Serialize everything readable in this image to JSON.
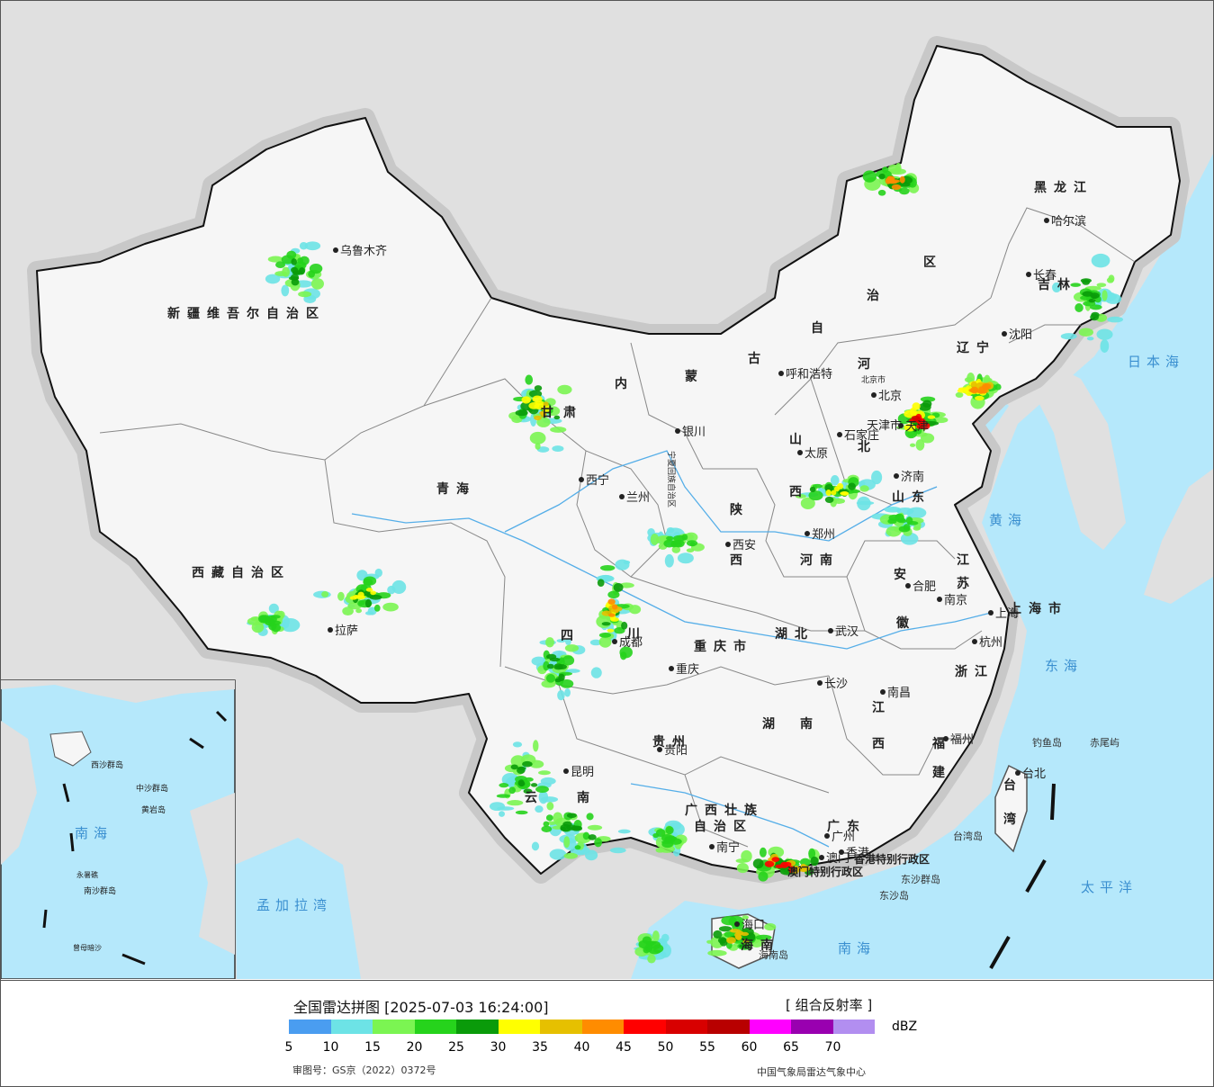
{
  "legend": {
    "title": "全国雷达拼图 [2025-07-03 16:24:00]",
    "product": "[ 组合反射率 ]",
    "unit": "dBZ",
    "colors": [
      "#4a9df0",
      "#6de3e6",
      "#7bf552",
      "#26d31c",
      "#0a9b0a",
      "#ffff00",
      "#e6c000",
      "#ff8c00",
      "#ff0000",
      "#d80000",
      "#b80000",
      "#ff00ff",
      "#9900b0",
      "#b28ef0"
    ],
    "ticks": [
      "5",
      "10",
      "15",
      "20",
      "25",
      "30",
      "35",
      "40",
      "45",
      "50",
      "55",
      "60",
      "65",
      "70"
    ]
  },
  "credits": {
    "left": "审图号：GS京（2022）0372号",
    "right": "中国气象局雷达气象中心"
  },
  "colors": {
    "land": "#f6f6f6",
    "sea": "#b5e8fb",
    "foreign": "#e0e0e0",
    "border": "#111111",
    "province": "#888888",
    "river": "#55aee8"
  },
  "labels": {
    "regions": {
      "xinjiang": "新疆维吾尔自治区",
      "xizang": "西藏自治区",
      "qinghai": "青海",
      "gansu_1": "甘",
      "gansu_2": "肃",
      "neimenggu_1": "内",
      "neimenggu_2": "蒙",
      "neimenggu_3": "古",
      "neimenggu_4": "自",
      "neimenggu_5": "治",
      "neimenggu_6": "区",
      "heilongjiang": "黑龙江",
      "jilin": "吉林",
      "liaoning": "辽宁",
      "hebei_1": "河",
      "hebei_2": "北",
      "shanxi_1": "山",
      "shanxi_2": "西",
      "shandong": "山东",
      "shaanxi_1": "陕",
      "shaanxi_2": "西",
      "henan": "河南",
      "jiangsu_1": "江",
      "jiangsu_2": "苏",
      "anhui_1": "安",
      "anhui_2": "徽",
      "shanghai": "上海市",
      "zhejiang": "浙江",
      "hubei": "湖北",
      "hunan_1": "湖",
      "hunan_2": "南",
      "jiangxi_1": "江",
      "jiangxi_2": "西",
      "fujian_1": "福",
      "fujian_2": "建",
      "sichuan_1": "四",
      "sichuan_2": "川",
      "chongqing": "重庆市",
      "guizhou": "贵州",
      "yunnan_1": "云",
      "yunnan_2": "南",
      "guangxi_1": "广西壮族",
      "guangxi_2": "自治区",
      "guangdong": "广东",
      "hainan": "海南",
      "taiwan_1": "台",
      "taiwan_2": "湾",
      "ningxia": "宁夏回族自治区",
      "tianjin_region": "天津市",
      "beijing_region": "北京市",
      "hongkong": "香港特别行政区",
      "macao": "澳门特别行政区"
    },
    "cities": {
      "urumqi": "乌鲁木齐",
      "lhasa": "拉萨",
      "xining": "西宁",
      "lanzhou": "兰州",
      "yinchuan": "银川",
      "huhehaote": "呼和浩特",
      "beijing": "北京",
      "tianjin": "天津",
      "shijiazhuang": "石家庄",
      "taiyuan": "太原",
      "jinan": "济南",
      "zhengzhou": "郑州",
      "xian": "西安",
      "hefei": "合肥",
      "nanjing": "南京",
      "shanghai": "上海",
      "hangzhou": "杭州",
      "wuhan": "武汉",
      "changsha": "长沙",
      "nanchang": "南昌",
      "fuzhou": "福州",
      "chengdu": "成都",
      "chongqing": "重庆",
      "guiyang": "贵阳",
      "kunming": "昆明",
      "nanning": "南宁",
      "guangzhou": "广州",
      "hongkong": "香港",
      "macao": "澳门",
      "haikou": "海口",
      "shenyang": "沈阳",
      "changchun": "长春",
      "harbin": "哈尔滨",
      "taibei": "台北"
    },
    "seas": {
      "riben": "日本海",
      "huanghai": "黄海",
      "donghai": "东海",
      "taipingyang": "太平洋",
      "nanhai": "南海",
      "bengal": "孟加拉湾",
      "inset_nanhai": "南海"
    },
    "islands": {
      "diaoyu": "钓鱼岛",
      "chiwei": "赤尾屿",
      "taiwandao": "台湾岛",
      "dongsha_qundao": "东沙群岛",
      "dongshadao": "东沙岛",
      "hainandao": "海南岛",
      "inset_zhongsha": "中沙群岛",
      "inset_huangyan": "黄岩岛",
      "inset_nansha": "南沙群岛",
      "inset_zengmu": "曾母暗沙",
      "inset_yongshu": "永暑礁",
      "inset_xisha": "西沙群岛"
    }
  }
}
